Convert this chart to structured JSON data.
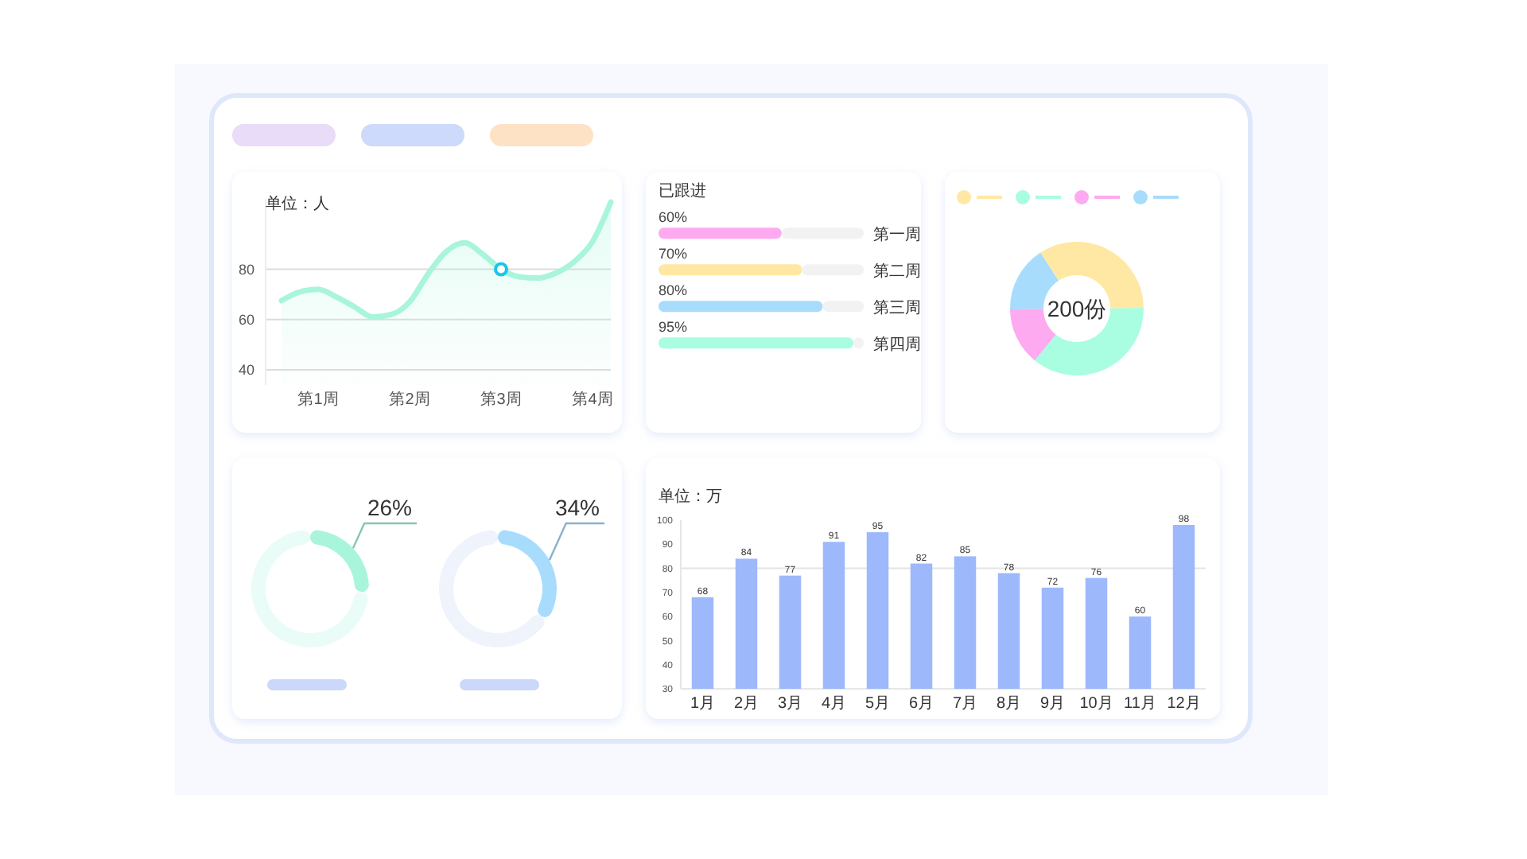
{
  "chart_data": [
    {
      "type": "area",
      "ylabel": "单位：人",
      "categories": [
        null,
        null,
        "第1周",
        null,
        null,
        null,
        null,
        "第2周",
        null,
        null,
        null,
        null,
        "第3周",
        null,
        null,
        null,
        null,
        "第4周",
        null
      ],
      "ylim": [
        34,
        108
      ],
      "yticks": [
        40,
        60,
        80
      ],
      "grid": "y",
      "series": [
        {
          "type": "area",
          "color": "#a9f5dc",
          "values": [
            67.5,
            71,
            72,
            69,
            65,
            61,
            62,
            67,
            78,
            87,
            90.5,
            86,
            80,
            77,
            76.5,
            78.5,
            83,
            91,
            106.7
          ]
        },
        {
          "type": "scatter",
          "values": [
            null,
            null,
            null,
            null,
            null,
            null,
            null,
            null,
            null,
            null,
            null,
            null,
            80,
            null,
            null,
            null,
            null,
            null,
            null
          ],
          "color": "#19c6ec",
          "marker": "circle"
        }
      ]
    },
    {
      "type": "bar",
      "title": "已跟进",
      "orientation": "horizontal",
      "stacked": true,
      "categories": [
        "第一周",
        "第二周",
        "第三周",
        "第四周"
      ],
      "xlim": [
        0,
        100
      ],
      "tick_labels": "y",
      "series": [
        {
          "colors": [
            "#fdaaf0",
            "#ffe8a3",
            "#a8dcfc",
            "#a9fde0"
          ],
          "values": [
            60,
            70,
            80,
            95
          ],
          "value_labels": [
            "60%",
            "70%",
            "80%",
            "95%"
          ]
        },
        {
          "color": "#f2f2f2",
          "values": [
            40,
            30,
            20,
            5
          ]
        }
      ]
    },
    {
      "type": "donut",
      "categories": [
        null,
        null,
        null,
        null
      ],
      "values": [
        34,
        36,
        14,
        16
      ],
      "colors": [
        "#ffe8a3",
        "#a9fde0",
        "#fdaaf0",
        "#a8dcfc"
      ],
      "annotations": [
        "200份"
      ]
    },
    {
      "type": "donut",
      "categories": [
        null,
        null
      ],
      "values": [
        26,
        74
      ],
      "colors": [
        "#a9f5dc",
        "#eafcf8"
      ],
      "value_labels": [
        "26%",
        null
      ]
    },
    {
      "type": "donut",
      "categories": [
        null,
        null
      ],
      "values": [
        34,
        66
      ],
      "colors": [
        "#a8dcfc",
        "#eef3fc"
      ],
      "value_labels": [
        "34%",
        null
      ]
    },
    {
      "type": "bar",
      "ylabel": "单位：万",
      "categories": [
        "1月",
        "2月",
        "3月",
        "4月",
        "5月",
        "6月",
        "7月",
        "8月",
        "9月",
        "10月",
        "11月",
        "12月"
      ],
      "values": [
        68,
        84,
        77,
        91,
        95,
        82,
        85,
        78,
        72,
        76,
        60,
        98
      ],
      "color": "#9db9fb",
      "ylim": [
        30,
        100
      ],
      "yticks": [
        30,
        40,
        50,
        60,
        70,
        80,
        90,
        100
      ],
      "data_labels": true,
      "ref_lines": [
        {
          "axis": "y",
          "value": 80,
          "color": "#e4e4e4"
        }
      ]
    }
  ]
}
